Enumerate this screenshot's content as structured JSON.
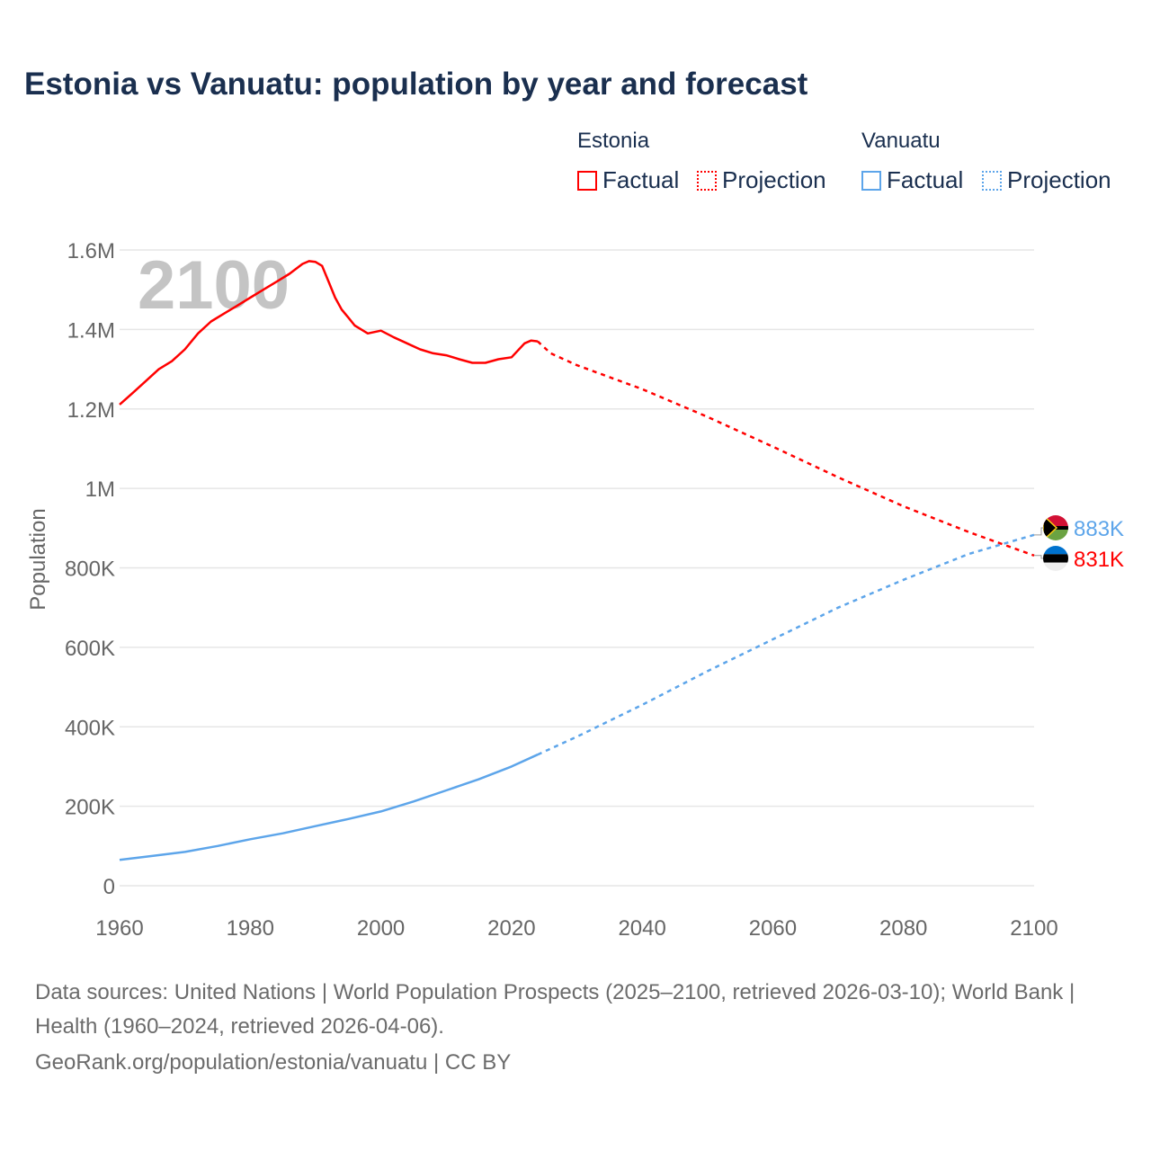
{
  "chart_data": {
    "type": "line",
    "title": "Estonia vs Vanuatu: population by year and forecast",
    "ylabel": "Population",
    "xlabel": "",
    "xlim": [
      1960,
      2100
    ],
    "ylim": [
      0,
      1600000
    ],
    "x_ticks": [
      "1960",
      "1980",
      "2000",
      "2020",
      "2040",
      "2060",
      "2080",
      "2100"
    ],
    "y_ticks": [
      {
        "v": 0,
        "label": "0"
      },
      {
        "v": 200000,
        "label": "200K"
      },
      {
        "v": 400000,
        "label": "400K"
      },
      {
        "v": 600000,
        "label": "600K"
      },
      {
        "v": 800000,
        "label": "800K"
      },
      {
        "v": 1000000,
        "label": "1M"
      },
      {
        "v": 1200000,
        "label": "1.2M"
      },
      {
        "v": 1400000,
        "label": "1.4M"
      },
      {
        "v": 1600000,
        "label": "1.6M"
      }
    ],
    "year_watermark": "2100",
    "grid": true,
    "legend": {
      "placement": "top-right",
      "groups": [
        {
          "name": "Estonia",
          "factual": "Factual",
          "projection": "Projection"
        },
        {
          "name": "Vanuatu",
          "factual": "Factual",
          "projection": "Projection"
        }
      ]
    },
    "series": [
      {
        "name": "Estonia",
        "color": "#ff0000",
        "end_label": "831K",
        "factual": [
          [
            1960,
            1211000
          ],
          [
            1962,
            1240000
          ],
          [
            1964,
            1270000
          ],
          [
            1966,
            1300000
          ],
          [
            1968,
            1320000
          ],
          [
            1970,
            1350000
          ],
          [
            1972,
            1390000
          ],
          [
            1974,
            1420000
          ],
          [
            1976,
            1440000
          ],
          [
            1978,
            1460000
          ],
          [
            1980,
            1480000
          ],
          [
            1982,
            1500000
          ],
          [
            1984,
            1520000
          ],
          [
            1986,
            1540000
          ],
          [
            1988,
            1565000
          ],
          [
            1989,
            1572000
          ],
          [
            1990,
            1570000
          ],
          [
            1991,
            1560000
          ],
          [
            1992,
            1520000
          ],
          [
            1993,
            1480000
          ],
          [
            1994,
            1450000
          ],
          [
            1995,
            1430000
          ],
          [
            1996,
            1410000
          ],
          [
            1997,
            1400000
          ],
          [
            1998,
            1390000
          ],
          [
            2000,
            1397000
          ],
          [
            2002,
            1380000
          ],
          [
            2004,
            1365000
          ],
          [
            2006,
            1350000
          ],
          [
            2008,
            1340000
          ],
          [
            2010,
            1335000
          ],
          [
            2012,
            1325000
          ],
          [
            2014,
            1316000
          ],
          [
            2016,
            1316000
          ],
          [
            2018,
            1325000
          ],
          [
            2020,
            1330000
          ],
          [
            2022,
            1365000
          ],
          [
            2023,
            1372000
          ],
          [
            2024,
            1370000
          ]
        ],
        "projection": [
          [
            2024,
            1370000
          ],
          [
            2026,
            1340000
          ],
          [
            2030,
            1310000
          ],
          [
            2040,
            1250000
          ],
          [
            2050,
            1180000
          ],
          [
            2060,
            1105000
          ],
          [
            2070,
            1028000
          ],
          [
            2080,
            955000
          ],
          [
            2090,
            890000
          ],
          [
            2100,
            831000
          ]
        ]
      },
      {
        "name": "Vanuatu",
        "color": "#5da5ea",
        "end_label": "883K",
        "factual": [
          [
            1960,
            65000
          ],
          [
            1965,
            75000
          ],
          [
            1970,
            85000
          ],
          [
            1975,
            100000
          ],
          [
            1980,
            117000
          ],
          [
            1985,
            132000
          ],
          [
            1990,
            150000
          ],
          [
            1995,
            168000
          ],
          [
            2000,
            187000
          ],
          [
            2005,
            212000
          ],
          [
            2010,
            240000
          ],
          [
            2015,
            268000
          ],
          [
            2020,
            300000
          ],
          [
            2024,
            330000
          ]
        ],
        "projection": [
          [
            2024,
            330000
          ],
          [
            2030,
            375000
          ],
          [
            2040,
            455000
          ],
          [
            2050,
            540000
          ],
          [
            2060,
            620000
          ],
          [
            2070,
            700000
          ],
          [
            2080,
            770000
          ],
          [
            2090,
            835000
          ],
          [
            2100,
            883000
          ]
        ]
      }
    ]
  },
  "footer": {
    "sources": "Data sources: United Nations | World Population Prospects (2025–2100, retrieved 2026-03-10); World Bank | Health (1960–2024, retrieved 2026-04-06).",
    "link": "GeoRank.org/population/estonia/vanuatu | CC BY"
  }
}
